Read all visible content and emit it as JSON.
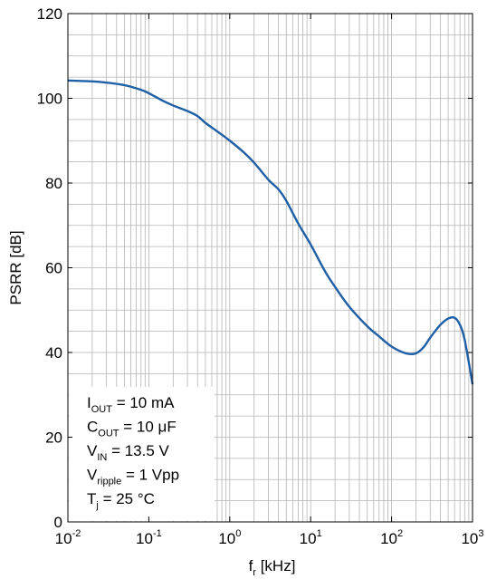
{
  "chart_data": {
    "type": "line",
    "x_scale": "log",
    "xlim": [
      0.01,
      1000
    ],
    "ylim": [
      0,
      120
    ],
    "y_ticks": [
      0,
      20,
      40,
      60,
      80,
      100,
      120
    ],
    "x_ticks": [
      {
        "base": "10",
        "exp": "-2",
        "value": 0.01
      },
      {
        "base": "10",
        "exp": "-1",
        "value": 0.1
      },
      {
        "base": "10",
        "exp": "0",
        "value": 1
      },
      {
        "base": "10",
        "exp": "1",
        "value": 10
      },
      {
        "base": "10",
        "exp": "2",
        "value": 100
      },
      {
        "base": "10",
        "exp": "3",
        "value": 1000
      }
    ],
    "xlabel": {
      "main": "f",
      "sub": "r",
      "rest": " [kHz]"
    },
    "ylabel": "PSRR [dB]",
    "grid": true,
    "line_color": "#1f5fa6",
    "series": [
      {
        "x": [
          0.01,
          0.02,
          0.03,
          0.05,
          0.08,
          0.1,
          0.15,
          0.2,
          0.3,
          0.4,
          0.5,
          0.7,
          1,
          1.5,
          2,
          3,
          4,
          5,
          7,
          10,
          15,
          20,
          30,
          50,
          70,
          100,
          150,
          200,
          250,
          300,
          400,
          500,
          600,
          700,
          800,
          1000
        ],
        "y": [
          104.2,
          104.0,
          103.7,
          103.1,
          102.0,
          101.2,
          99.4,
          98.3,
          97.0,
          95.8,
          94.2,
          92.2,
          90.0,
          87.2,
          84.8,
          80.8,
          78.5,
          75.8,
          70.5,
          65.5,
          59.2,
          55.5,
          50.8,
          46.2,
          43.8,
          41.4,
          39.8,
          39.8,
          41.3,
          43.5,
          46.5,
          48.0,
          48.2,
          46.5,
          43.0,
          32.5
        ]
      }
    ]
  },
  "legend": {
    "lines": [
      {
        "main": "I",
        "sub": "OUT",
        "rest": " = 10 mA"
      },
      {
        "main": "C",
        "sub": "OUT",
        "rest": " = 10 μF"
      },
      {
        "main": "V",
        "sub": "IN",
        "rest": " = 13.5 V"
      },
      {
        "main": "V",
        "sub": "ripple",
        "rest": " = 1 Vpp"
      },
      {
        "main": "T",
        "sub": "j",
        "rest": " = 25 °C"
      }
    ]
  }
}
